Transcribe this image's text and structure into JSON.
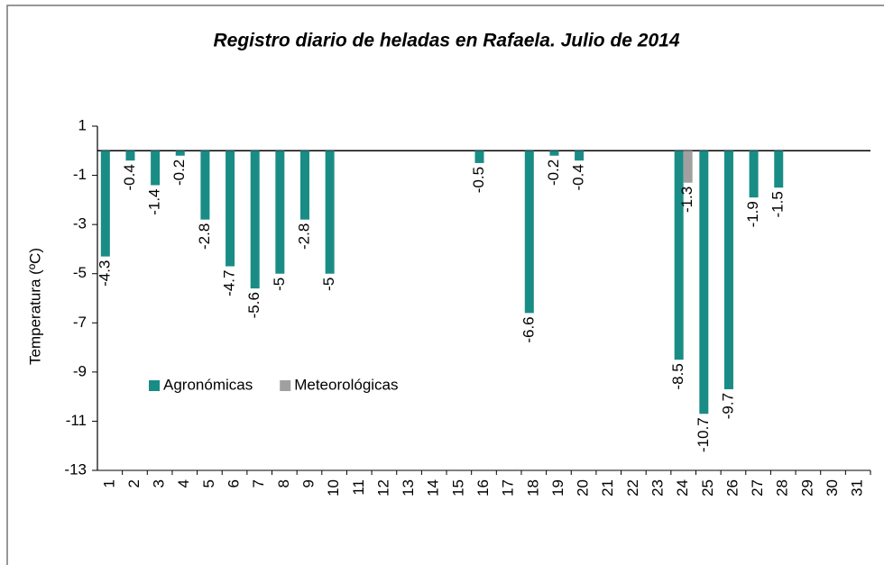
{
  "chart_data": {
    "type": "bar",
    "title": "Registro  diario de heladas en Rafaela.  Julio de 2014",
    "y_label": "Temperatura  (ºC)",
    "categories": [
      "1",
      "2",
      "3",
      "4",
      "5",
      "6",
      "7",
      "8",
      "9",
      "10",
      "11",
      "12",
      "13",
      "14",
      "15",
      "16",
      "17",
      "18",
      "19",
      "20",
      "21",
      "22",
      "23",
      "24",
      "25",
      "26",
      "27",
      "28",
      "29",
      "30",
      "31"
    ],
    "series": [
      {
        "name": "Agronómicas",
        "color": "#1a8c86",
        "values": [
          -4.3,
          -0.4,
          -1.4,
          -0.2,
          -2.8,
          -4.7,
          -5.6,
          -5,
          -2.8,
          -5,
          null,
          null,
          null,
          null,
          null,
          -0.5,
          null,
          -6.6,
          -0.2,
          -0.4,
          null,
          null,
          null,
          -8.5,
          -10.7,
          -9.7,
          -1.9,
          -1.5,
          null,
          null,
          null
        ]
      },
      {
        "name": "Meteorológicas",
        "color": "#a0a0a0",
        "values": [
          null,
          null,
          null,
          null,
          null,
          null,
          null,
          null,
          null,
          null,
          null,
          null,
          null,
          null,
          null,
          null,
          null,
          null,
          null,
          null,
          null,
          null,
          null,
          -1.3,
          null,
          null,
          null,
          null,
          null,
          null,
          null
        ]
      }
    ],
    "ylim": [
      -13,
      1
    ],
    "yticks": [
      1,
      -1,
      -3,
      -5,
      -7,
      -9,
      -11,
      -13
    ],
    "legend": "middle-left"
  }
}
